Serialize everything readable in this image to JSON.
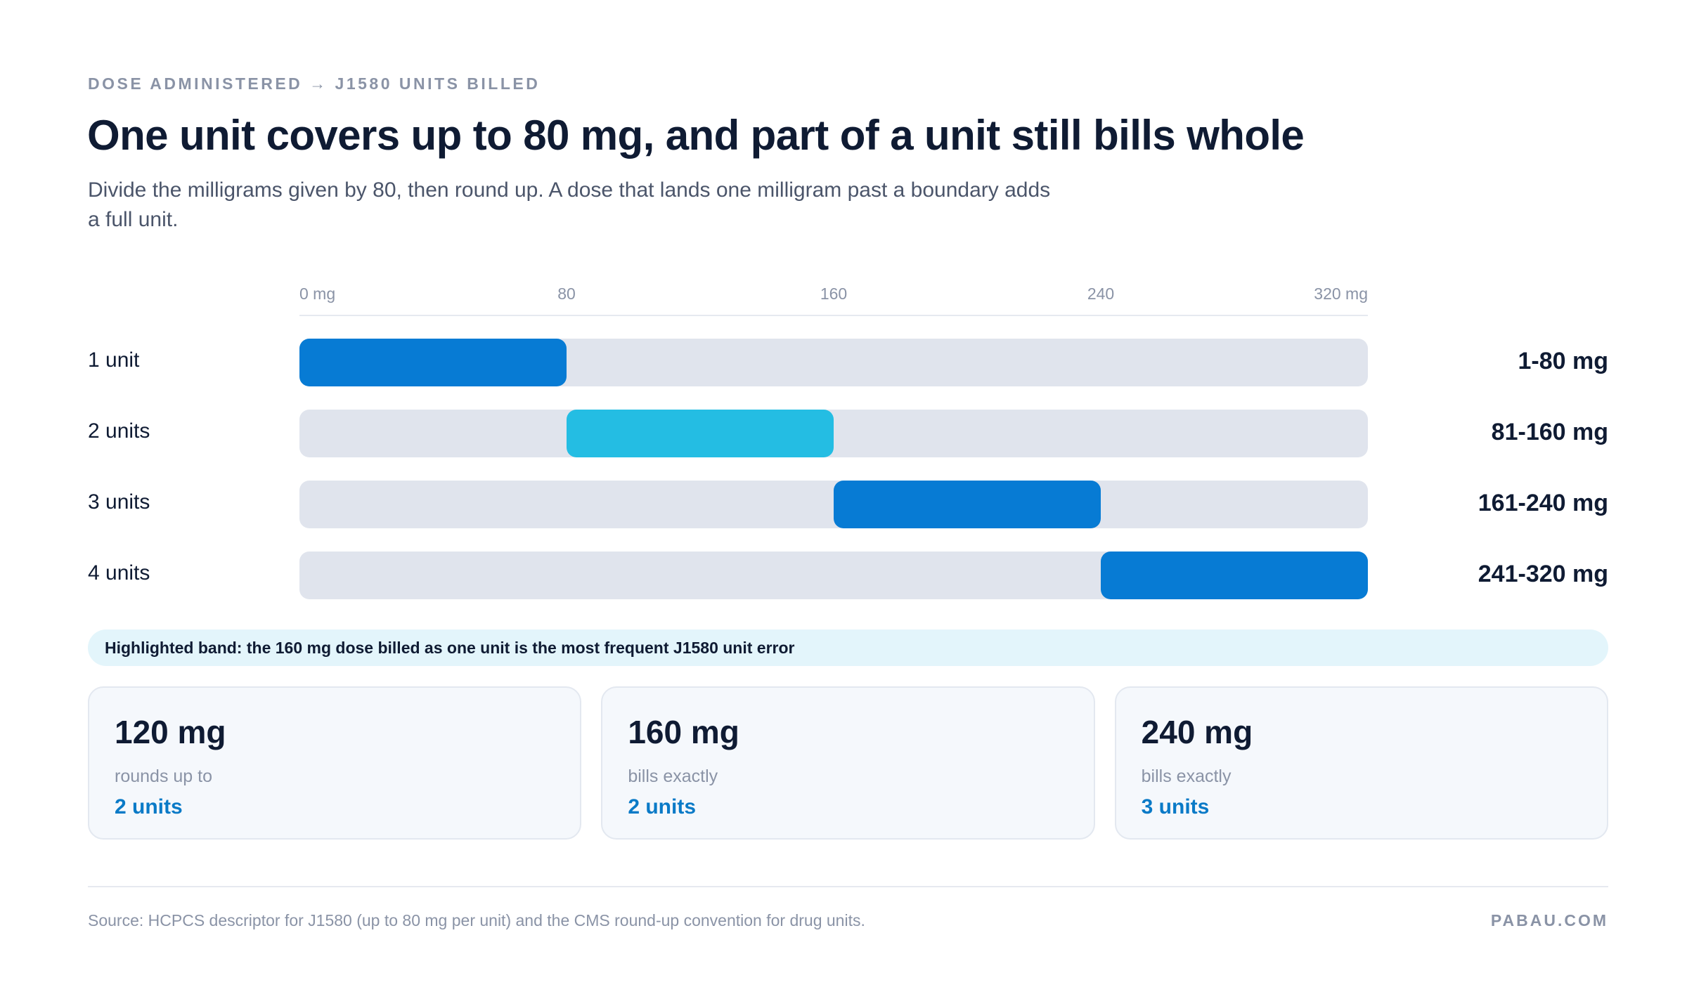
{
  "header": {
    "eyebrow": "DOSE ADMINISTERED → J1580 UNITS BILLED",
    "title": "One unit covers up to 80 mg, and part of a unit still bills whole",
    "subtitle": "Divide the milligrams given by 80, then round up. A dose that lands one milligram past a boundary adds a full unit."
  },
  "chart_data": {
    "type": "bar",
    "orientation": "horizontal-range",
    "xlim": [
      0,
      320
    ],
    "x_ticks": [
      {
        "value": 0,
        "label": "0 mg"
      },
      {
        "value": 80,
        "label": "80"
      },
      {
        "value": 160,
        "label": "160"
      },
      {
        "value": 240,
        "label": "240"
      },
      {
        "value": 320,
        "label": "320 mg"
      }
    ],
    "categories": [
      "1 unit",
      "2 units",
      "3 units",
      "4 units"
    ],
    "ranges": [
      {
        "start": 0,
        "end": 80,
        "range_label": "1-80 mg",
        "color": "#077bd4"
      },
      {
        "start": 80,
        "end": 160,
        "range_label": "81-160 mg",
        "color": "#24bde3"
      },
      {
        "start": 160,
        "end": 240,
        "range_label": "161-240 mg",
        "color": "#077bd4"
      },
      {
        "start": 240,
        "end": 320,
        "range_label": "241-320 mg",
        "color": "#077bd4"
      }
    ],
    "track_color": "#e0e4ed",
    "grid": false
  },
  "callout": {
    "text": "Highlighted band: the 160 mg dose billed as one unit is the most frequent J1580 unit error"
  },
  "cards": [
    {
      "dose": "120 mg",
      "note": "rounds up to",
      "units": "2 units"
    },
    {
      "dose": "160 mg",
      "note": "bills exactly",
      "units": "2 units"
    },
    {
      "dose": "240 mg",
      "note": "bills exactly",
      "units": "3 units"
    }
  ],
  "footer": {
    "source": "Source: HCPCS descriptor for J1580 (up to 80 mg per unit) and the CMS round-up convention for drug units.",
    "brand": "PABAU.COM"
  }
}
